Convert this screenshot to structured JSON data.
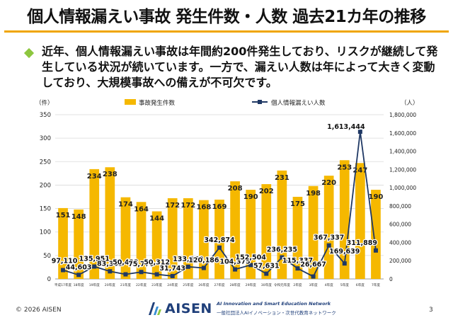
{
  "slide": {
    "title": "個人情報漏えい事故 発生件数・人数 過去21カ年の推移",
    "summary": "近年、個人情報漏えい事故は年間約200件発生しており、リスクが継続して発生している状況が続いています。一方で、漏えい人数は年によって大きく変動しており、大規模事故への備えが不可欠です。"
  },
  "colors": {
    "bar": "#f5b800",
    "line": "#1f3864",
    "title_rule": "#f0a500",
    "bullet": "#8dc63f",
    "grid": "#d9d9d9"
  },
  "chart_data": {
    "type": "bar+line",
    "left_unit": "（件）",
    "right_unit": "（人）",
    "left_ylim": [
      0,
      350
    ],
    "left_ticks": [
      "0",
      "50",
      "100",
      "150",
      "200",
      "250",
      "300",
      "350"
    ],
    "right_ylim": [
      0,
      1800000
    ],
    "right_ticks": [
      "0",
      "200,000",
      "400,000",
      "600,000",
      "800,000",
      "1,000,000",
      "1,200,000",
      "1,400,000",
      "1,600,000",
      "1,800,000"
    ],
    "grid": true,
    "legend_position": "top",
    "categories": [
      "平成17年度",
      "18年度",
      "19年度",
      "20年度",
      "21年度",
      "22年度",
      "23年度",
      "24年度",
      "25年度",
      "26年度",
      "27年度",
      "28年度",
      "29年度",
      "30年度",
      "令和元年度",
      "2年度",
      "3年度",
      "4年度",
      "5年度",
      "6年度",
      "7年度"
    ],
    "series": [
      {
        "name": "事故発生件数",
        "type": "bar",
        "axis": "left",
        "values": [
          151,
          148,
          234,
          238,
          174,
          164,
          144,
          172,
          172,
          168,
          169,
          208,
          190,
          202,
          231,
          175,
          198,
          220,
          253,
          247,
          190
        ],
        "labels": [
          "151",
          "148",
          "234",
          "238",
          "174",
          "164",
          "144",
          "172",
          "172",
          "168",
          "169",
          "208",
          "190",
          "202",
          "231",
          "175",
          "198",
          "220",
          "253",
          "247",
          "190"
        ]
      },
      {
        "name": "個人情報漏えい人数",
        "type": "line",
        "axis": "right",
        "values": [
          97110,
          44603,
          135951,
          83363,
          50423,
          75770,
          50312,
          31743,
          133360,
          120186,
          342874,
          104375,
          152504,
          57631,
          236235,
          115337,
          26667,
          367337,
          169639,
          1613444,
          311889
        ],
        "labels": [
          "97,110",
          "44,603",
          "135,951",
          "83,363",
          "50,423",
          "75,770",
          "50,312",
          "31,743",
          "133,360",
          "120,186",
          "342,874",
          "104,375",
          "152,504",
          "57,631",
          "236,235",
          "115,337",
          "26,667",
          "367,337",
          "169,639",
          "1,613,444",
          "311,889"
        ]
      }
    ]
  },
  "footer": {
    "copyright": "© 2026 AISEN",
    "logo_name": "AISEN",
    "logo_tagline": "AI Innovation and Smart Education Network",
    "logo_subtitle": "一般社団法人AIイノベーション・次世代教育ネットワーク",
    "page_number": "3"
  }
}
